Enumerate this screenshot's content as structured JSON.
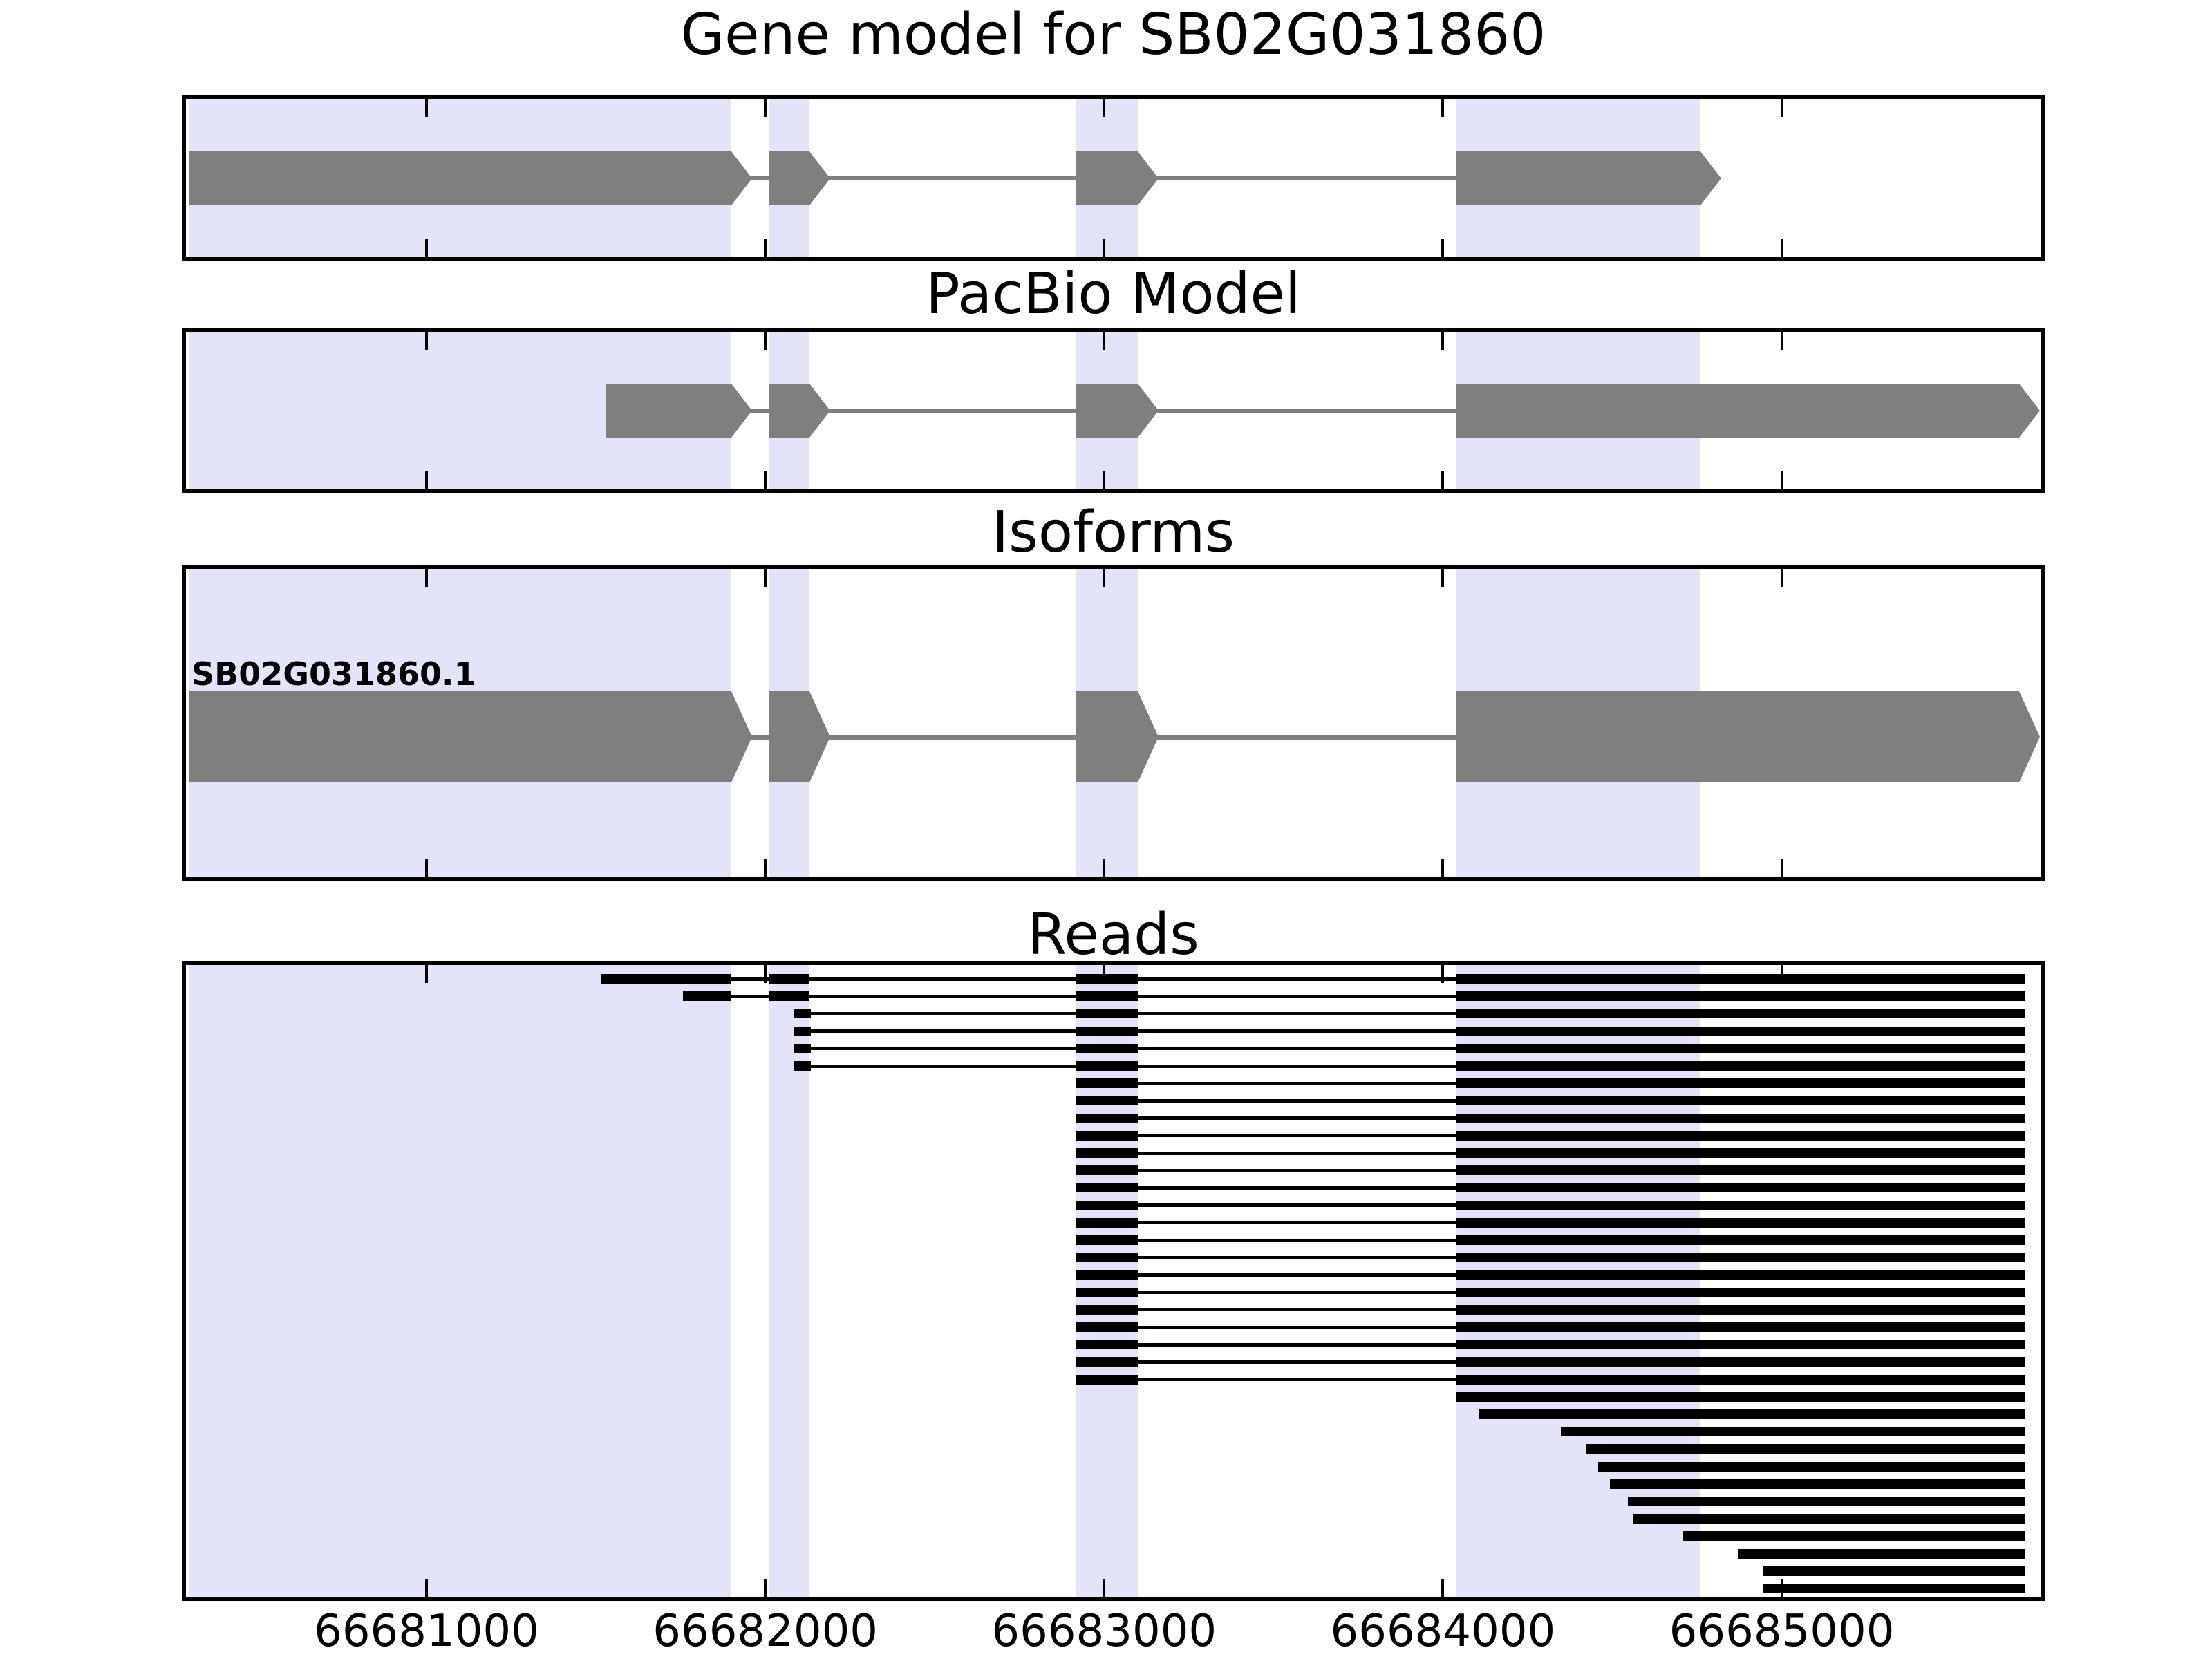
{
  "figure_title": "Gene model for SB02G031860",
  "chart_data": {
    "type": "genome-tracks",
    "title": "Gene model for SB02G031860",
    "gene_id": "SB02G031860",
    "x_axis": {
      "min": 66680290,
      "max": 66685764,
      "ticks": [
        66681000,
        66682000,
        66683000,
        66684000,
        66685000
      ],
      "tick_labels": [
        "66681000",
        "66682000",
        "66683000",
        "66684000",
        "66685000"
      ],
      "grid": false
    },
    "colors": {
      "exon": "#7f7f7f",
      "intron": "#7f7f7f",
      "read": "#000000",
      "highlight_band": "#e4e4f8",
      "border": "#000000",
      "text": "#000000",
      "background": "#ffffff"
    },
    "highlight_bands": [
      [
        66680300,
        66681900
      ],
      [
        66682010,
        66682130
      ],
      [
        66682917,
        66683100
      ],
      [
        66684037,
        66684760
      ]
    ],
    "tracks": [
      {
        "id": "gene-model",
        "title": "Gene model for SB02G031860",
        "kind": "model",
        "exons": [
          [
            66680300,
            66681900
          ],
          [
            66682010,
            66682130
          ],
          [
            66682917,
            66683100
          ],
          [
            66684037,
            66684760
          ]
        ]
      },
      {
        "id": "pacbio-model",
        "title": "PacBio Model",
        "kind": "model",
        "exons": [
          [
            66681530,
            66681900
          ],
          [
            66682010,
            66682130
          ],
          [
            66682917,
            66683100
          ],
          [
            66684037,
            66685700
          ]
        ]
      },
      {
        "id": "isoforms",
        "title": "Isoforms",
        "kind": "model",
        "isoform_label": "SB02G031860.1",
        "exons": [
          [
            66680300,
            66681900
          ],
          [
            66682010,
            66682130
          ],
          [
            66682917,
            66683100
          ],
          [
            66684037,
            66685700
          ]
        ]
      },
      {
        "id": "reads",
        "title": "Reads",
        "kind": "reads",
        "reads": [
          {
            "exons": [
              [
                66681514,
                66681900
              ],
              [
                66682010,
                66682130
              ],
              [
                66682917,
                66683100
              ],
              [
                66684037,
                66685720
              ]
            ]
          },
          {
            "exons": [
              [
                66681756,
                66681900
              ],
              [
                66682010,
                66682130
              ],
              [
                66682917,
                66683100
              ],
              [
                66684037,
                66685720
              ]
            ]
          },
          {
            "exons": [
              [
                66682085,
                66682135
              ],
              [
                66682917,
                66683100
              ],
              [
                66684037,
                66685720
              ]
            ]
          },
          {
            "exons": [
              [
                66682085,
                66682135
              ],
              [
                66682917,
                66683100
              ],
              [
                66684037,
                66685720
              ]
            ]
          },
          {
            "exons": [
              [
                66682085,
                66682135
              ],
              [
                66682917,
                66683100
              ],
              [
                66684037,
                66685720
              ]
            ]
          },
          {
            "exons": [
              [
                66682085,
                66682135
              ],
              [
                66682917,
                66683100
              ],
              [
                66684037,
                66685720
              ]
            ]
          },
          {
            "exons": [
              [
                66682917,
                66683100
              ],
              [
                66684037,
                66685720
              ]
            ]
          },
          {
            "exons": [
              [
                66682917,
                66683100
              ],
              [
                66684037,
                66685720
              ]
            ]
          },
          {
            "exons": [
              [
                66682917,
                66683100
              ],
              [
                66684037,
                66685720
              ]
            ]
          },
          {
            "exons": [
              [
                66682917,
                66683100
              ],
              [
                66684037,
                66685720
              ]
            ]
          },
          {
            "exons": [
              [
                66682917,
                66683100
              ],
              [
                66684037,
                66685720
              ]
            ]
          },
          {
            "exons": [
              [
                66682917,
                66683100
              ],
              [
                66684037,
                66685720
              ]
            ]
          },
          {
            "exons": [
              [
                66682917,
                66683100
              ],
              [
                66684037,
                66685720
              ]
            ]
          },
          {
            "exons": [
              [
                66682917,
                66683100
              ],
              [
                66684037,
                66685720
              ]
            ]
          },
          {
            "exons": [
              [
                66682917,
                66683100
              ],
              [
                66684037,
                66685720
              ]
            ]
          },
          {
            "exons": [
              [
                66682917,
                66683100
              ],
              [
                66684037,
                66685720
              ]
            ]
          },
          {
            "exons": [
              [
                66682917,
                66683100
              ],
              [
                66684037,
                66685720
              ]
            ]
          },
          {
            "exons": [
              [
                66682917,
                66683100
              ],
              [
                66684037,
                66685720
              ]
            ]
          },
          {
            "exons": [
              [
                66682917,
                66683100
              ],
              [
                66684037,
                66685720
              ]
            ]
          },
          {
            "exons": [
              [
                66682917,
                66683100
              ],
              [
                66684037,
                66685720
              ]
            ]
          },
          {
            "exons": [
              [
                66682917,
                66683100
              ],
              [
                66684037,
                66685720
              ]
            ]
          },
          {
            "exons": [
              [
                66682917,
                66683100
              ],
              [
                66684037,
                66685720
              ]
            ]
          },
          {
            "exons": [
              [
                66682917,
                66683100
              ],
              [
                66684037,
                66685720
              ]
            ]
          },
          {
            "exons": [
              [
                66682917,
                66683100
              ],
              [
                66684037,
                66685720
              ]
            ]
          },
          {
            "exons": [
              [
                66684040,
                66685720
              ]
            ]
          },
          {
            "exons": [
              [
                66684107,
                66685720
              ]
            ]
          },
          {
            "exons": [
              [
                66684349,
                66685720
              ]
            ]
          },
          {
            "exons": [
              [
                66684424,
                66685720
              ]
            ]
          },
          {
            "exons": [
              [
                66684459,
                66685720
              ]
            ]
          },
          {
            "exons": [
              [
                66684493,
                66685720
              ]
            ]
          },
          {
            "exons": [
              [
                66684546,
                66685720
              ]
            ]
          },
          {
            "exons": [
              [
                66684562,
                66685720
              ]
            ]
          },
          {
            "exons": [
              [
                66684707,
                66685720
              ]
            ]
          },
          {
            "exons": [
              [
                66684871,
                66685720
              ]
            ]
          },
          {
            "exons": [
              [
                66684946,
                66685720
              ]
            ]
          },
          {
            "exons": [
              [
                66684946,
                66685720
              ]
            ]
          }
        ]
      }
    ]
  }
}
